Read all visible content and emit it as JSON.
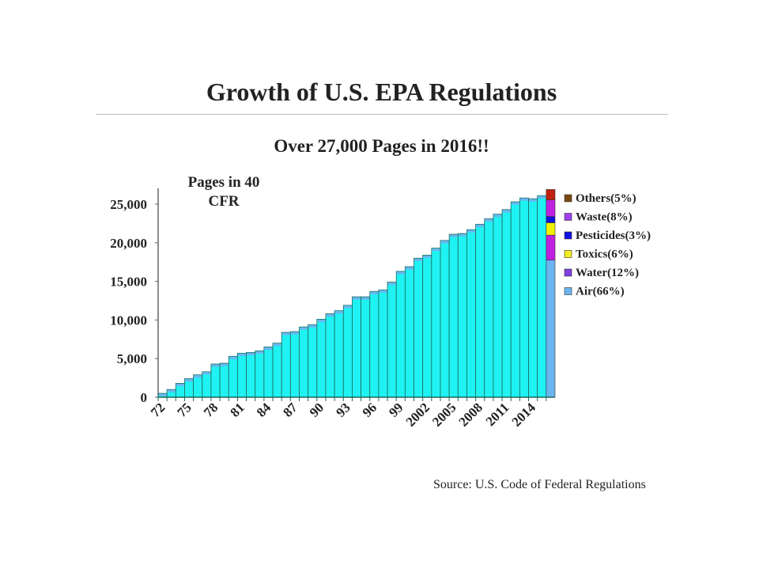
{
  "chart_data": {
    "type": "bar",
    "title": "Growth of U.S. EPA Regulations",
    "subtitle": "Over 27,000 Pages in 2016!!",
    "ylabel": "Pages in 40 CFR",
    "xlabel": "",
    "source": "Source: U.S. Code of Federal Regulations",
    "ylim": [
      0,
      27000
    ],
    "yticks": [
      0,
      5000,
      10000,
      15000,
      20000,
      25000
    ],
    "ytick_labels": [
      "0",
      "5,000",
      "10,000",
      "15,000",
      "20,000",
      "25,000"
    ],
    "categories": [
      1972,
      1973,
      1974,
      1975,
      1976,
      1977,
      1978,
      1979,
      1980,
      1981,
      1982,
      1983,
      1984,
      1985,
      1986,
      1987,
      1988,
      1989,
      1990,
      1991,
      1992,
      1993,
      1994,
      1995,
      1996,
      1997,
      1998,
      1999,
      2000,
      2001,
      2002,
      2003,
      2004,
      2005,
      2006,
      2007,
      2008,
      2009,
      2010,
      2011,
      2012,
      2013,
      2014,
      2015,
      2016
    ],
    "xtick_labels": {
      "1972": "72",
      "1975": "75",
      "1978": "78",
      "1981": "81",
      "1984": "84",
      "1987": "87",
      "1990": "90",
      "1993": "93",
      "1996": "96",
      "1999": "99",
      "2002": "2002",
      "2005": "2005",
      "2008": "2008",
      "2011": "2011",
      "2014": "2014"
    },
    "values": [
      500,
      1000,
      1800,
      2400,
      2900,
      3300,
      4300,
      4400,
      5300,
      5700,
      5800,
      6000,
      6500,
      7000,
      8400,
      8500,
      9100,
      9400,
      10100,
      10800,
      11200,
      11900,
      13000,
      13000,
      13700,
      13900,
      14900,
      16300,
      16900,
      18000,
      18400,
      19300,
      20300,
      21100,
      21200,
      21700,
      22400,
      23100,
      23700,
      24300,
      25300,
      25800,
      25700,
      26100,
      26900
    ],
    "bar_color": "#1ff2f2",
    "breakdown_2016": [
      {
        "name": "Air(66%)",
        "percent": 66,
        "color": "#6cb4f0"
      },
      {
        "name": "Water(12%)",
        "percent": 12,
        "color": "#c020e0"
      },
      {
        "name": "Toxics(6%)",
        "percent": 6,
        "color": "#f0f000"
      },
      {
        "name": "Pesticides(3%)",
        "percent": 3,
        "color": "#1010e0"
      },
      {
        "name": "Waste(8%)",
        "percent": 8,
        "color": "#c020e0"
      },
      {
        "name": "Others(5%)",
        "percent": 5,
        "color": "#c02010"
      }
    ],
    "legend_order": [
      "Others(5%)",
      "Waste(8%)",
      "Pesticides(3%)",
      "Toxics(6%)",
      "Water(12%)",
      "Air(66%)"
    ],
    "legend_colors": {
      "Others(5%)": "#7a4a10",
      "Waste(8%)": "#a040f0",
      "Pesticides(3%)": "#1010e0",
      "Toxics(6%)": "#f0f020",
      "Water(12%)": "#8040e0",
      "Air(66%)": "#6cb4f0"
    },
    "legend_position": "right",
    "grid": false
  }
}
